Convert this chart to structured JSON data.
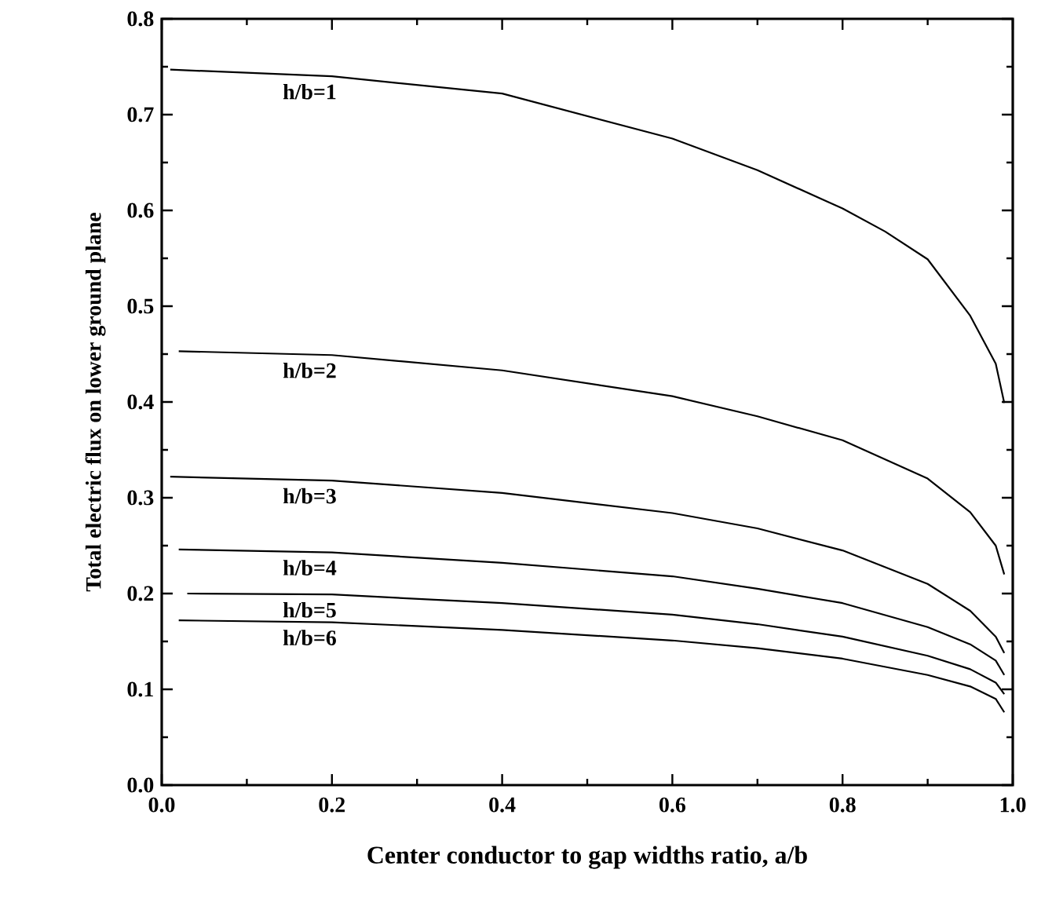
{
  "chart_data": {
    "type": "line",
    "xlabel": "Center conductor to gap widths ratio, a/b",
    "ylabel": "Total electric flux on lower ground plane",
    "xlim": [
      0.0,
      1.0
    ],
    "ylim": [
      0.0,
      0.8
    ],
    "xticks": [
      {
        "value": 0,
        "label": "0.0"
      },
      0.2,
      0.4,
      0.6,
      0.8,
      {
        "value": 1,
        "label": "1.0"
      }
    ],
    "yticks": [
      {
        "value": 0,
        "label": "0.0"
      },
      0.1,
      0.2,
      0.3,
      0.4,
      0.5,
      0.6,
      0.7,
      0.8
    ],
    "grid": false,
    "legend": false,
    "marker": "none",
    "line_style": "solid",
    "series": [
      {
        "name": "h/b=1",
        "color": "#000000",
        "x": [
          0.01,
          0.2,
          0.4,
          0.6,
          0.7,
          0.8,
          0.85,
          0.9,
          0.95,
          0.98,
          0.99
        ],
        "values": [
          0.747,
          0.74,
          0.722,
          0.675,
          0.642,
          0.602,
          0.578,
          0.549,
          0.49,
          0.44,
          0.399
        ]
      },
      {
        "name": "h/b=2",
        "color": "#000000",
        "x": [
          0.02,
          0.2,
          0.4,
          0.6,
          0.7,
          0.8,
          0.9,
          0.95,
          0.98,
          0.99
        ],
        "values": [
          0.453,
          0.449,
          0.433,
          0.406,
          0.385,
          0.36,
          0.32,
          0.285,
          0.25,
          0.22
        ]
      },
      {
        "name": "h/b=3",
        "color": "#000000",
        "x": [
          0.01,
          0.2,
          0.4,
          0.6,
          0.7,
          0.8,
          0.9,
          0.95,
          0.98,
          0.99
        ],
        "values": [
          0.322,
          0.318,
          0.305,
          0.284,
          0.268,
          0.245,
          0.21,
          0.182,
          0.155,
          0.138
        ]
      },
      {
        "name": "h/b=4",
        "color": "#000000",
        "x": [
          0.02,
          0.2,
          0.4,
          0.6,
          0.7,
          0.8,
          0.9,
          0.95,
          0.98,
          0.99
        ],
        "values": [
          0.246,
          0.243,
          0.232,
          0.218,
          0.205,
          0.19,
          0.165,
          0.147,
          0.13,
          0.115
        ]
      },
      {
        "name": "h/b=5",
        "color": "#000000",
        "x": [
          0.03,
          0.2,
          0.4,
          0.6,
          0.7,
          0.8,
          0.9,
          0.95,
          0.98,
          0.99
        ],
        "values": [
          0.2,
          0.199,
          0.19,
          0.178,
          0.168,
          0.155,
          0.135,
          0.121,
          0.107,
          0.095
        ]
      },
      {
        "name": "h/b=6",
        "color": "#000000",
        "x": [
          0.02,
          0.2,
          0.4,
          0.6,
          0.7,
          0.8,
          0.9,
          0.95,
          0.98,
          0.99
        ],
        "values": [
          0.172,
          0.17,
          0.162,
          0.151,
          0.143,
          0.132,
          0.115,
          0.103,
          0.09,
          0.076
        ]
      }
    ]
  }
}
